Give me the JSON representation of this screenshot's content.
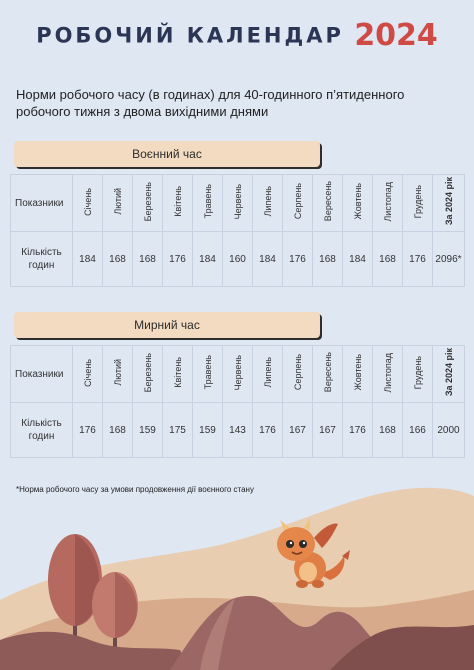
{
  "title": {
    "text": "РОБОЧИЙ КАЛЕНДАР",
    "year": "2024"
  },
  "subtitle": "Норми робочого часу (в годинах) для 40-годинного п’ятиденного робочого тижня з двома вихідними днями",
  "row_labels": {
    "header": "Показники",
    "hours": "Кількість годин"
  },
  "months": [
    "Січень",
    "Лютий",
    "Березень",
    "Квітень",
    "Травень",
    "Червень",
    "Липень",
    "Серпень",
    "Вересень",
    "Жовтень",
    "Листопад",
    "Грудень"
  ],
  "year_col": "За 2024 рік",
  "wartime": {
    "label": "Воєнний час",
    "values": [
      "184",
      "168",
      "168",
      "176",
      "184",
      "160",
      "184",
      "176",
      "168",
      "184",
      "168",
      "176"
    ],
    "total": "2096*"
  },
  "peacetime": {
    "label": "Мирний час",
    "values": [
      "176",
      "168",
      "159",
      "175",
      "159",
      "143",
      "176",
      "167",
      "167",
      "176",
      "168",
      "166"
    ],
    "total": "2000"
  },
  "footnote": "*Норма робочого часу за умови продовження дії воєнного стану",
  "colors": {
    "title": "#2b3655",
    "year": "#d04a45",
    "bar": "#f2dbc0",
    "background": "#dfe7f3"
  },
  "illustration": "dragon-mascot-landscape"
}
